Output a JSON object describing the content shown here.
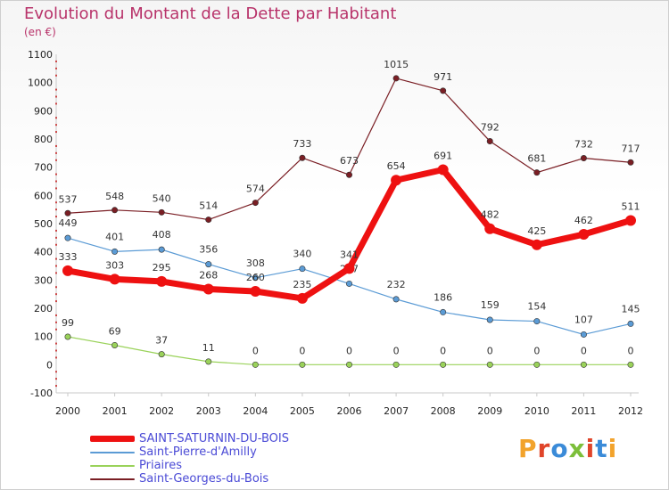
{
  "header": {
    "title": "Evolution du Montant de la Dette par Habitant",
    "subtitle": "(en €)"
  },
  "logo": {
    "text": "Proxiti",
    "colors": [
      "#f2a32c",
      "#e0452a",
      "#3b8bd8",
      "#7cbf3a",
      "#e0452a",
      "#3b8bd8",
      "#f2a32c"
    ]
  },
  "chart_data": {
    "type": "line",
    "x": [
      "2000",
      "2001",
      "2002",
      "2003",
      "2004",
      "2005",
      "2006",
      "2007",
      "2008",
      "2009",
      "2010",
      "2011",
      "2012"
    ],
    "ylim": [
      -100,
      1100
    ],
    "yticks": [
      -100,
      0,
      100,
      200,
      300,
      400,
      500,
      600,
      700,
      800,
      900,
      1000,
      1100
    ],
    "grid": false,
    "legend_position": "bottom-left",
    "series": [
      {
        "name": "Saint-Georges-du-Bois",
        "color": "#7a1e24",
        "values": [
          537,
          548,
          540,
          514,
          574,
          733,
          673,
          1015,
          971,
          792,
          681,
          732,
          717
        ]
      },
      {
        "name": "Saint-Pierre-d'Amilly",
        "color": "#5b9bd5",
        "values": [
          449,
          401,
          408,
          356,
          308,
          340,
          287,
          232,
          186,
          159,
          154,
          107,
          145
        ]
      },
      {
        "name": "Priaires",
        "color": "#9ad25a",
        "values": [
          99,
          69,
          37,
          11,
          0,
          0,
          0,
          0,
          0,
          0,
          0,
          0,
          0
        ]
      },
      {
        "name": "SAINT-SATURNIN-DU-BOIS",
        "color": "#ee1111",
        "values": [
          333,
          303,
          295,
          268,
          260,
          235,
          341,
          654,
          691,
          482,
          425,
          462,
          511
        ]
      }
    ],
    "value_labels": [
      [
        "537",
        "548",
        "540",
        "514",
        "574",
        "733",
        "673",
        "1015",
        "971",
        "792",
        "681",
        "732",
        "717"
      ],
      [
        "449",
        "401",
        "408",
        "356",
        "308",
        "340",
        "287",
        "232",
        "186",
        "159",
        "154",
        "107",
        "145"
      ],
      [
        "99",
        "69",
        "37",
        "11",
        "0",
        "0",
        "0",
        "0",
        "0",
        "0",
        "0",
        "0",
        "0"
      ],
      [
        "333",
        "303",
        "295",
        "268",
        "260",
        "235",
        "341",
        "654",
        "691",
        "482",
        "425",
        "462",
        "511"
      ]
    ],
    "legend_order": [
      "SAINT-SATURNIN-DU-BOIS",
      "Saint-Pierre-d'Amilly",
      "Priaires",
      "Saint-Georges-du-Bois"
    ]
  }
}
